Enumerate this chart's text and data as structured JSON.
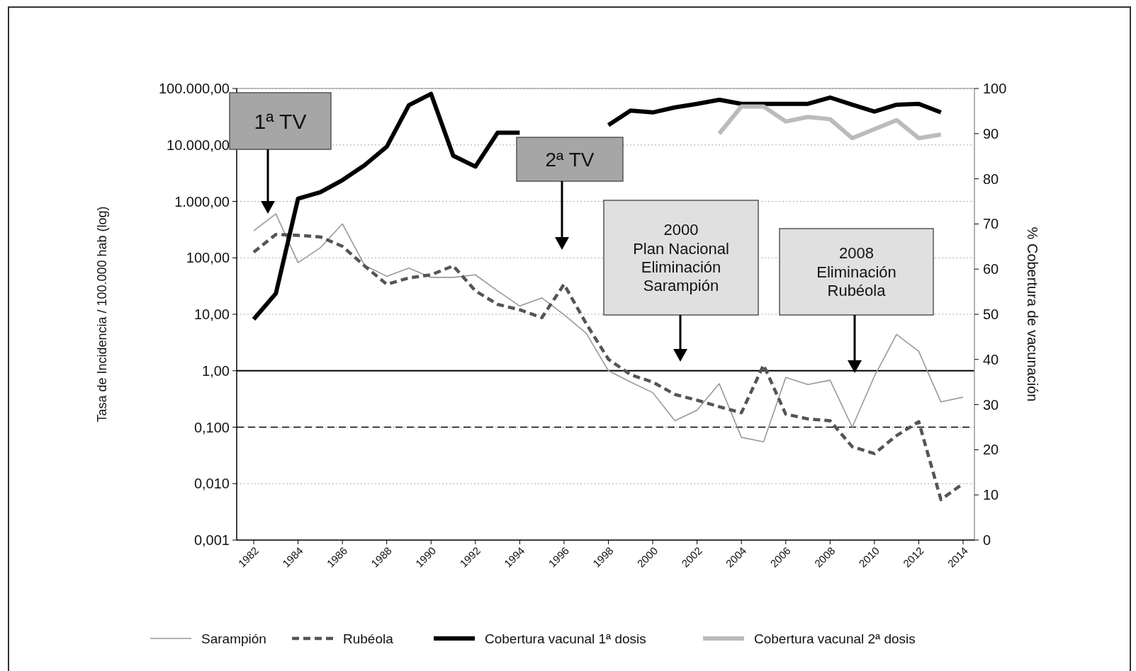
{
  "chart_data": {
    "type": "line",
    "xlabel": null,
    "ylabel": "Tasa de Incidencia / 100.000 hab (log)",
    "y2label": "% Cobertura de vacunación",
    "categories": [
      "1982",
      null,
      "1984",
      null,
      "1986",
      null,
      "1988",
      null,
      "1990",
      null,
      "1992",
      null,
      "1994",
      null,
      "1996",
      null,
      "1998",
      null,
      "2000",
      null,
      "2002",
      null,
      "2004",
      null,
      "2006",
      null,
      "2008",
      null,
      "2010",
      null,
      "2012",
      null,
      "2014"
    ],
    "log": "y",
    "grid": "y",
    "legend": "bottom",
    "marker": "none",
    "ylim": [
      0.001,
      100000
    ],
    "yticks": [
      {
        "value": 0.001,
        "label": "0,001"
      },
      {
        "value": 0.01,
        "label": "0,010"
      },
      {
        "value": 0.1,
        "label": "0,100"
      },
      {
        "value": 1,
        "label": "1,00"
      },
      {
        "value": 10,
        "label": "10,00"
      },
      {
        "value": 100,
        "label": "100,00"
      },
      {
        "value": 1000,
        "label": "1.000,00"
      },
      {
        "value": 10000,
        "label": "10.000,00"
      },
      {
        "value": 100000,
        "label": "100.000,00"
      }
    ],
    "y2lim": [
      0,
      100
    ],
    "y2ticks": [
      0,
      10,
      20,
      30,
      40,
      50,
      60,
      70,
      80,
      90,
      100
    ],
    "series": [
      {
        "name": "Sarampión",
        "color": "#999999",
        "line_style": "solid",
        "values": [
          300,
          600,
          82,
          150,
          400,
          74,
          47,
          66,
          45,
          45,
          50,
          26,
          14,
          19.5,
          9.8,
          4.6,
          1.0,
          0.63,
          0.41,
          0.13,
          0.2,
          0.59,
          0.066,
          0.055,
          0.76,
          0.57,
          0.68,
          0.1,
          0.8,
          4.4,
          2.2,
          0.28,
          0.34
        ]
      },
      {
        "name": "Rubéola",
        "color": "#555555",
        "line_style": "dashed",
        "values": [
          126,
          260,
          250,
          235,
          160,
          72,
          34,
          44,
          50,
          72,
          26,
          15,
          12,
          8.7,
          34,
          6.8,
          1.6,
          0.85,
          0.63,
          0.38,
          0.3,
          0.23,
          0.18,
          1.26,
          0.17,
          0.14,
          0.13,
          0.045,
          0.034,
          0.071,
          0.125,
          0.0052,
          0.01
        ]
      },
      {
        "name": "Cobertura vacunal 1ª dosis",
        "color": "#000000",
        "line_style": "solid",
        "axis": "y2",
        "values": [
          48.9,
          54.6,
          75.6,
          77,
          79.7,
          83,
          87.1,
          96.3,
          98.8,
          85.1,
          82.7,
          90.2,
          90.2,
          null,
          null,
          null,
          91.9,
          95.1,
          94.7,
          95.8,
          96.6,
          97.5,
          96.6,
          96.6,
          96.6,
          96.6,
          98,
          96.4,
          94.9,
          96.4,
          96.6,
          94.7,
          null
        ]
      },
      {
        "name": "Cobertura vacunal 2ª dosis",
        "color": "#bbbbbb",
        "line_style": "solid",
        "axis": "y2",
        "values": [
          null,
          null,
          null,
          null,
          null,
          null,
          null,
          null,
          null,
          null,
          null,
          null,
          null,
          null,
          null,
          null,
          null,
          null,
          null,
          null,
          null,
          90,
          96,
          96,
          92.7,
          93.7,
          93.2,
          89,
          91,
          93,
          89,
          89.8,
          null
        ]
      }
    ],
    "ref_lines": [
      {
        "axis": "y",
        "value": 1,
        "color": "#000000",
        "line_style": "solid"
      },
      {
        "axis": "y",
        "value": 0.1,
        "color": "#000000",
        "line_style": "dashed"
      }
    ],
    "annotations": [
      "1ª TV",
      "2ª TV",
      "2000\nPlan Nacional\nEliminación\nSarampión",
      "2008\nEliminación\nRubéola"
    ]
  }
}
